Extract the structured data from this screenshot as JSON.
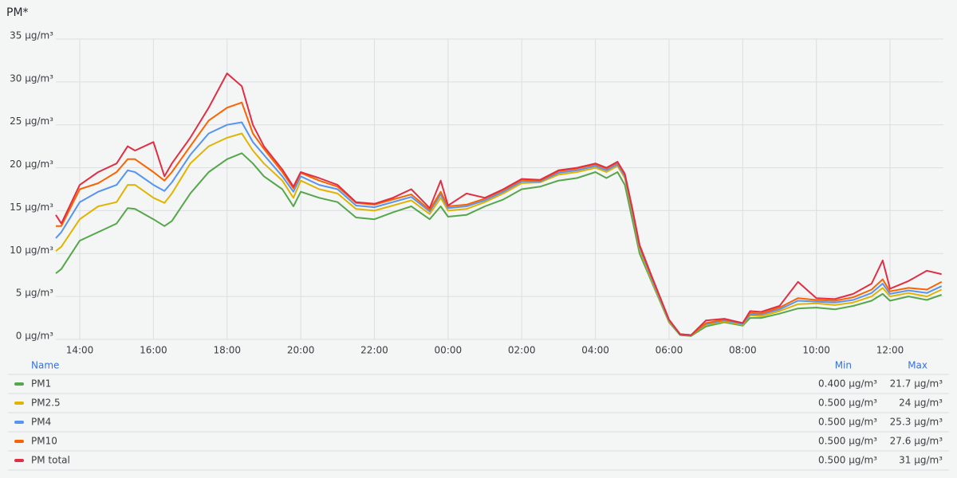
{
  "chart_data": {
    "type": "line",
    "title": "PM*",
    "x": [
      13.35,
      13.5,
      14,
      14.5,
      15,
      15.3,
      15.5,
      16,
      16.3,
      16.5,
      17,
      17.5,
      18,
      18.4,
      18.7,
      19,
      19.5,
      19.8,
      20,
      20.5,
      21,
      21.5,
      22,
      22.5,
      23,
      23.5,
      23.8,
      24,
      24.5,
      25,
      25.5,
      26,
      26.5,
      27,
      27.5,
      28,
      28.3,
      28.6,
      28.8,
      29,
      29.2,
      29.5,
      30,
      30.3,
      30.6,
      31,
      31.5,
      32,
      32.2,
      32.5,
      33,
      33.5,
      34,
      34.5,
      35,
      35.5,
      35.8,
      36,
      36.5,
      37,
      37.4
    ],
    "xlim": [
      13.35,
      37.45
    ],
    "xticks": [
      {
        "value": 14,
        "label": "14:00"
      },
      {
        "value": 16,
        "label": "16:00"
      },
      {
        "value": 18,
        "label": "18:00"
      },
      {
        "value": 20,
        "label": "20:00"
      },
      {
        "value": 22,
        "label": "22:00"
      },
      {
        "value": 24,
        "label": "00:00"
      },
      {
        "value": 26,
        "label": "02:00"
      },
      {
        "value": 28,
        "label": "04:00"
      },
      {
        "value": 30,
        "label": "06:00"
      },
      {
        "value": 32,
        "label": "08:00"
      },
      {
        "value": 34,
        "label": "10:00"
      },
      {
        "value": 36,
        "label": "12:00"
      }
    ],
    "ylim": [
      0,
      35
    ],
    "yticks": [
      {
        "value": 0,
        "label": "0 µg/m³"
      },
      {
        "value": 5,
        "label": "5 µg/m³"
      },
      {
        "value": 10,
        "label": "10 µg/m³"
      },
      {
        "value": 15,
        "label": "15 µg/m³"
      },
      {
        "value": 20,
        "label": "20 µg/m³"
      },
      {
        "value": 25,
        "label": "25 µg/m³"
      },
      {
        "value": 30,
        "label": "30 µg/m³"
      },
      {
        "value": 35,
        "label": "35 µg/m³"
      }
    ],
    "grid": true,
    "legend": {
      "name": "Name",
      "min": "Min",
      "max": "Max"
    },
    "series": [
      {
        "name": "PM1",
        "color": "#56a64b",
        "min": {
          "value": 0.4,
          "label": "0.400 µg/m³"
        },
        "max": {
          "value": 21.7,
          "label": "21.7 µg/m³"
        },
        "values": [
          7.7,
          8.2,
          11.5,
          12.5,
          13.5,
          15.3,
          15.2,
          14,
          13.2,
          13.8,
          17,
          19.5,
          21,
          21.7,
          20.5,
          19,
          17.5,
          15.5,
          17.2,
          16.5,
          16,
          14.2,
          14,
          14.8,
          15.5,
          14,
          15.5,
          14.3,
          14.5,
          15.5,
          16.3,
          17.5,
          17.8,
          18.5,
          18.8,
          19.5,
          18.8,
          19.5,
          18,
          14,
          10,
          7,
          2,
          0.5,
          0.4,
          1.5,
          2,
          1.6,
          2.5,
          2.5,
          3,
          3.6,
          3.7,
          3.5,
          3.9,
          4.5,
          5.3,
          4.5,
          5,
          4.6,
          5.2
        ]
      },
      {
        "name": "PM2.5",
        "color": "#e0b400",
        "min": {
          "value": 0.5,
          "label": "0.500 µg/m³"
        },
        "max": {
          "value": 24,
          "label": "24 µg/m³"
        },
        "values": [
          10.3,
          10.8,
          14,
          15.5,
          16,
          18,
          18,
          16.5,
          15.9,
          17,
          20.5,
          22.5,
          23.5,
          24,
          22,
          20.5,
          18.5,
          16.5,
          18.5,
          17.5,
          17,
          15.2,
          15,
          15.6,
          16.2,
          14.6,
          16.5,
          15,
          15.2,
          16,
          17,
          18.2,
          18.3,
          19.2,
          19.5,
          20,
          19.5,
          20.2,
          18.8,
          14.8,
          10.5,
          7.2,
          2.1,
          0.6,
          0.5,
          1.7,
          2.1,
          1.7,
          2.8,
          2.7,
          3.3,
          4.1,
          4.2,
          4,
          4.3,
          5,
          6,
          5,
          5.4,
          5,
          5.8
        ]
      },
      {
        "name": "PM4",
        "color": "#5794f2",
        "min": {
          "value": 0.5,
          "label": "0.500 µg/m³"
        },
        "max": {
          "value": 25.3,
          "label": "25.3 µg/m³"
        },
        "values": [
          11.8,
          12.5,
          16,
          17.2,
          18,
          19.7,
          19.5,
          18,
          17.3,
          18.3,
          21.5,
          24,
          25,
          25.3,
          23,
          21.5,
          19,
          17.2,
          19,
          18,
          17.5,
          15.6,
          15.4,
          16,
          16.6,
          14.9,
          16.9,
          15.3,
          15.5,
          16.2,
          17.2,
          18.4,
          18.4,
          19.4,
          19.7,
          20.2,
          19.7,
          20.4,
          19,
          15,
          10.7,
          7.4,
          2.2,
          0.6,
          0.5,
          1.8,
          2.2,
          1.8,
          2.9,
          2.9,
          3.5,
          4.5,
          4.4,
          4.3,
          4.6,
          5.4,
          6.5,
          5.3,
          5.7,
          5.4,
          6.2
        ]
      },
      {
        "name": "PM10",
        "color": "#fa6400",
        "min": {
          "value": 0.5,
          "label": "0.500 µg/m³"
        },
        "max": {
          "value": 27.6,
          "label": "27.6 µg/m³"
        },
        "values": [
          13.2,
          13.2,
          17.5,
          18.2,
          19.5,
          21,
          21,
          19.5,
          18.5,
          19.5,
          22.5,
          25.5,
          27,
          27.6,
          24,
          22.2,
          19.5,
          17.6,
          19.4,
          18.5,
          17.8,
          15.9,
          15.7,
          16.3,
          16.9,
          15.1,
          17.2,
          15.5,
          15.7,
          16.4,
          17.4,
          18.6,
          18.5,
          19.6,
          19.9,
          20.4,
          19.9,
          20.6,
          19.2,
          15.2,
          10.9,
          7.6,
          2.3,
          0.6,
          0.5,
          1.9,
          2.3,
          1.9,
          3.1,
          3,
          3.7,
          4.8,
          4.6,
          4.5,
          4.9,
          5.8,
          7,
          5.6,
          6,
          5.8,
          6.7
        ]
      },
      {
        "name": "PM total",
        "color": "#e02f44",
        "min": {
          "value": 0.5,
          "label": "0.500 µg/m³"
        },
        "max": {
          "value": 31,
          "label": "31 µg/m³"
        },
        "values": [
          14.5,
          13.5,
          18,
          19.5,
          20.5,
          22.5,
          22,
          23,
          19,
          20.5,
          23.5,
          27,
          31,
          29.5,
          25,
          22.5,
          19.8,
          17.8,
          19.5,
          18.8,
          18,
          16,
          15.8,
          16.5,
          17.5,
          15.3,
          18.5,
          15.6,
          17,
          16.5,
          17.5,
          18.7,
          18.6,
          19.7,
          20,
          20.5,
          20,
          20.7,
          19.3,
          15.3,
          11,
          7.7,
          2.3,
          0.6,
          0.5,
          2.2,
          2.4,
          1.9,
          3.3,
          3.2,
          3.9,
          6.7,
          4.8,
          4.7,
          5.3,
          6.5,
          9.2,
          5.9,
          6.8,
          8,
          7.6
        ]
      }
    ]
  }
}
